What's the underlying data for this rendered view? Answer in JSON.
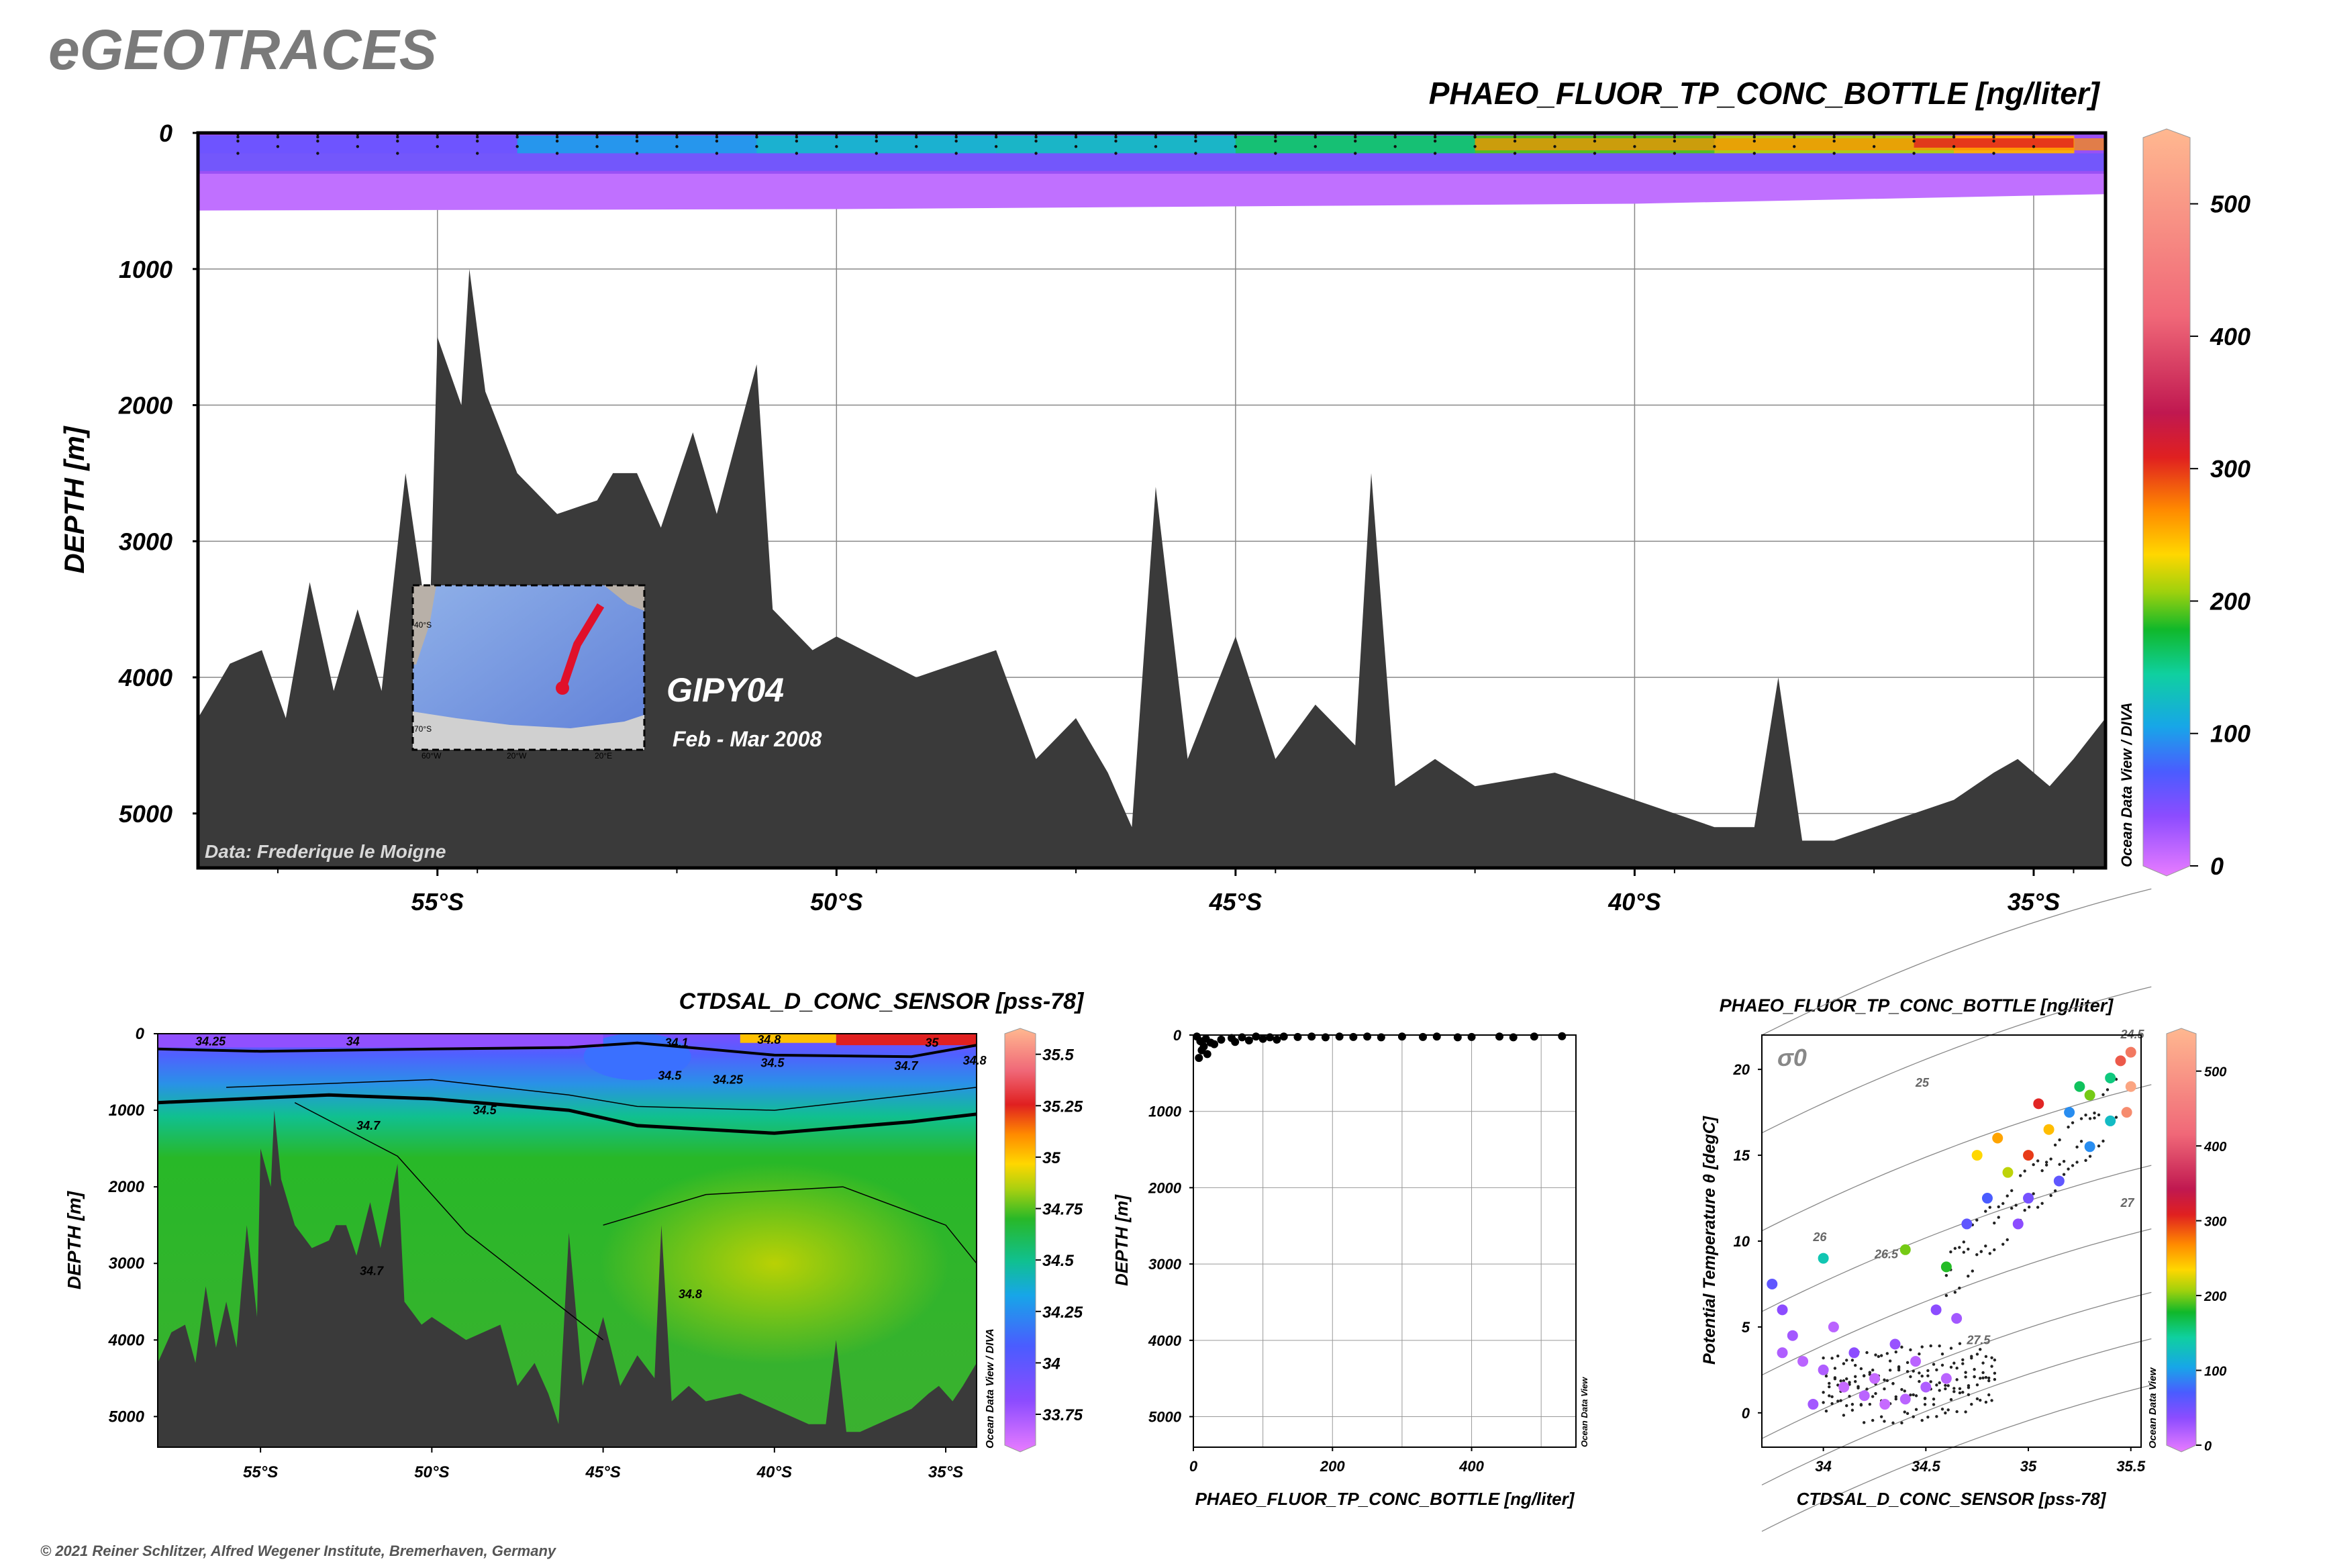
{
  "logo_text": "eGEOTRACES",
  "copyright": "© 2021 Reiner Schlitzer, Alfred Wegener Institute, Bremerhaven, Germany",
  "colors": {
    "seafloor": "#3a3a3a",
    "frame": "#000000",
    "grid": "#888888",
    "track": "#e0102a"
  },
  "chart_data": [
    {
      "id": "main_section",
      "type": "heatmap",
      "title": "PHAEO_FLUOR_TP_CONC_BOTTLE [ng/liter]",
      "ylabel": "DEPTH [m]",
      "ylim": [
        0,
        5400
      ],
      "yticks": [
        0,
        1000,
        2000,
        3000,
        4000,
        5000
      ],
      "xlim": [
        -58,
        -34.1
      ],
      "xticks": [
        {
          "value": -55,
          "label": "55°S"
        },
        {
          "value": -50,
          "label": "50°S"
        },
        {
          "value": -45,
          "label": "45°S"
        },
        {
          "value": -40,
          "label": "40°S"
        },
        {
          "value": -35,
          "label": "35°S"
        }
      ],
      "colorbar": {
        "range": [
          0,
          550
        ],
        "ticks": [
          0,
          100,
          200,
          300,
          400,
          500
        ],
        "label": "Ocean Data View / DIVA"
      },
      "data_source": "Data: Frederique le Moigne",
      "cruise": "GIPY04",
      "period": "Feb - Mar 2008",
      "inset_map_labels": [
        "40°S",
        "70°S",
        "60°W",
        "20°W",
        "20°E"
      ],
      "bottom_depth": [
        [
          -58,
          4300
        ],
        [
          -57.6,
          3900
        ],
        [
          -57.2,
          3800
        ],
        [
          -56.9,
          4300
        ],
        [
          -56.6,
          3300
        ],
        [
          -56.3,
          4100
        ],
        [
          -56,
          3500
        ],
        [
          -55.7,
          4100
        ],
        [
          -55.4,
          2500
        ],
        [
          -55.1,
          3700
        ],
        [
          -55,
          1500
        ],
        [
          -54.7,
          2000
        ],
        [
          -54.6,
          1000
        ],
        [
          -54.4,
          1900
        ],
        [
          -54,
          2500
        ],
        [
          -53.5,
          2800
        ],
        [
          -53,
          2700
        ],
        [
          -52.8,
          2500
        ],
        [
          -52.5,
          2500
        ],
        [
          -52.2,
          2900
        ],
        [
          -51.8,
          2200
        ],
        [
          -51.5,
          2800
        ],
        [
          -51,
          1700
        ],
        [
          -50.8,
          3500
        ],
        [
          -50.3,
          3800
        ],
        [
          -50,
          3700
        ],
        [
          -49,
          4000
        ],
        [
          -48,
          3800
        ],
        [
          -47.5,
          4600
        ],
        [
          -47,
          4300
        ],
        [
          -46.6,
          4700
        ],
        [
          -46.3,
          5100
        ],
        [
          -46,
          2600
        ],
        [
          -45.6,
          4600
        ],
        [
          -45,
          3700
        ],
        [
          -44.5,
          4600
        ],
        [
          -44,
          4200
        ],
        [
          -43.5,
          4500
        ],
        [
          -43.3,
          2500
        ],
        [
          -43,
          4800
        ],
        [
          -42.5,
          4600
        ],
        [
          -42,
          4800
        ],
        [
          -41,
          4700
        ],
        [
          -40,
          4900
        ],
        [
          -39.5,
          5000
        ],
        [
          -39,
          5100
        ],
        [
          -38.5,
          5100
        ],
        [
          -38.2,
          4000
        ],
        [
          -37.9,
          5200
        ],
        [
          -37.5,
          5200
        ],
        [
          -37,
          5100
        ],
        [
          -36.5,
          5000
        ],
        [
          -36,
          4900
        ],
        [
          -35.5,
          4700
        ],
        [
          -35.2,
          4600
        ],
        [
          -34.8,
          4800
        ],
        [
          -34.5,
          4600
        ],
        [
          -34.1,
          4300
        ],
        [
          -34.1,
          2000
        ]
      ],
      "near_surface_field_ng_per_liter": [
        {
          "lat": -58,
          "value": 40
        },
        {
          "lat": -54,
          "value": 70
        },
        {
          "lat": -51,
          "value": 120
        },
        {
          "lat": -48,
          "value": 110
        },
        {
          "lat": -45,
          "value": 130
        },
        {
          "lat": -42,
          "value": 180
        },
        {
          "lat": -39,
          "value": 200
        },
        {
          "lat": -36,
          "value": 230
        },
        {
          "lat": -34.5,
          "value": 280
        }
      ],
      "deep_field_value_ng_per_liter": 15,
      "field_max_depth_m": 550
    },
    {
      "id": "salinity_section",
      "type": "heatmap",
      "title": "CTDSAL_D_CONC_SENSOR [pss-78]",
      "ylabel": "DEPTH [m]",
      "ylim": [
        0,
        5400
      ],
      "yticks": [
        0,
        1000,
        2000,
        3000,
        4000,
        5000
      ],
      "xlim": [
        -58,
        -34.1
      ],
      "xticks": [
        {
          "value": -55,
          "label": "55°S"
        },
        {
          "value": -50,
          "label": "50°S"
        },
        {
          "value": -45,
          "label": "45°S"
        },
        {
          "value": -40,
          "label": "40°S"
        },
        {
          "value": -35,
          "label": "35°S"
        }
      ],
      "colorbar": {
        "range": [
          33.6,
          35.6
        ],
        "ticks": [
          33.75,
          34,
          34.25,
          34.5,
          34.75,
          35,
          35.25,
          35.5
        ],
        "tick_labels": [
          "33.75",
          "34",
          "34.25",
          "34.5",
          "34.75",
          "35",
          "35.25",
          "35.5"
        ],
        "label": "Ocean Data View / DIVA"
      },
      "contour_labels": [
        {
          "text": "34.25",
          "lat": -56.9,
          "depth": 100
        },
        {
          "text": "34",
          "lat": -52.5,
          "depth": 100
        },
        {
          "text": "34.1",
          "lat": -43.2,
          "depth": 120
        },
        {
          "text": "34.8",
          "lat": -40.5,
          "depth": 80
        },
        {
          "text": "35",
          "lat": -35.6,
          "depth": 120
        },
        {
          "text": "34.5",
          "lat": -43.4,
          "depth": 550
        },
        {
          "text": "34.25",
          "lat": -41.8,
          "depth": 600
        },
        {
          "text": "34.5",
          "lat": -40.4,
          "depth": 380
        },
        {
          "text": "34.7",
          "lat": -36.5,
          "depth": 420
        },
        {
          "text": "34.8",
          "lat": -34.5,
          "depth": 350
        },
        {
          "text": "34.5",
          "lat": -48.8,
          "depth": 1000
        },
        {
          "text": "34.7",
          "lat": -52.2,
          "depth": 1200
        },
        {
          "text": "34.7",
          "lat": -52.1,
          "depth": 3100
        },
        {
          "text": "34.8",
          "lat": -42.8,
          "depth": 3400
        }
      ]
    },
    {
      "id": "scatter_depth",
      "type": "scatter",
      "xlabel": "PHAEO_FLUOR_TP_CONC_BOTTLE [ng/liter]",
      "ylabel": "DEPTH [m]",
      "xlim": [
        0,
        550
      ],
      "xticks": [
        0,
        200,
        400
      ],
      "ylim": [
        0,
        5400
      ],
      "yticks": [
        0,
        1000,
        2000,
        3000,
        4000,
        5000
      ],
      "side_label": "Ocean Data View",
      "points": [
        [
          5,
          20
        ],
        [
          10,
          80
        ],
        [
          15,
          150
        ],
        [
          20,
          250
        ],
        [
          8,
          300
        ],
        [
          25,
          100
        ],
        [
          40,
          60
        ],
        [
          55,
          40
        ],
        [
          70,
          30
        ],
        [
          90,
          20
        ],
        [
          110,
          30
        ],
        [
          130,
          20
        ],
        [
          150,
          25
        ],
        [
          170,
          20
        ],
        [
          190,
          30
        ],
        [
          210,
          20
        ],
        [
          230,
          25
        ],
        [
          250,
          20
        ],
        [
          270,
          30
        ],
        [
          300,
          20
        ],
        [
          330,
          25
        ],
        [
          350,
          20
        ],
        [
          380,
          30
        ],
        [
          400,
          25
        ],
        [
          440,
          20
        ],
        [
          460,
          30
        ],
        [
          490,
          20
        ],
        [
          530,
          15
        ],
        [
          12,
          200
        ],
        [
          30,
          120
        ],
        [
          18,
          50
        ],
        [
          60,
          90
        ],
        [
          80,
          70
        ],
        [
          100,
          50
        ],
        [
          120,
          60
        ]
      ]
    },
    {
      "id": "ts_diagram",
      "type": "scatter",
      "title": "PHAEO_FLUOR_TP_CONC_BOTTLE [ng/liter]",
      "xlabel": "CTDSAL_D_CONC_SENSOR [pss-78]",
      "ylabel": "Potential Temperature θ [degC]",
      "xlim": [
        33.7,
        35.55
      ],
      "xticks": [
        34,
        34.5,
        35,
        35.5
      ],
      "ylim": [
        -2,
        22
      ],
      "yticks": [
        0,
        5,
        10,
        15,
        20
      ],
      "density_label": "σ0",
      "isopycnal_labels": [
        "24.5",
        "25",
        "26",
        "26.5",
        "27",
        "27.5"
      ],
      "colorbar": {
        "range": [
          0,
          550
        ],
        "ticks": [
          0,
          100,
          200,
          300,
          400,
          500
        ],
        "label": "Ocean Data View"
      },
      "points": [
        [
          33.75,
          7.5,
          60
        ],
        [
          33.8,
          6.0,
          40
        ],
        [
          33.85,
          4.5,
          30
        ],
        [
          33.9,
          3.0,
          20
        ],
        [
          34.0,
          2.5,
          25
        ],
        [
          34.1,
          1.5,
          15
        ],
        [
          34.2,
          1.0,
          20
        ],
        [
          34.3,
          0.5,
          15
        ],
        [
          34.4,
          0.8,
          20
        ],
        [
          34.5,
          1.5,
          25
        ],
        [
          34.6,
          2.0,
          20
        ],
        [
          33.95,
          0.5,
          30
        ],
        [
          34.15,
          3.5,
          40
        ],
        [
          34.35,
          4.0,
          35
        ],
        [
          34.55,
          6.0,
          40
        ],
        [
          34.6,
          8.5,
          180
        ],
        [
          34.7,
          11.0,
          60
        ],
        [
          34.8,
          12.5,
          70
        ],
        [
          34.9,
          14.0,
          220
        ],
        [
          35.0,
          15.0,
          300
        ],
        [
          35.1,
          16.5,
          250
        ],
        [
          35.2,
          17.5,
          90
        ],
        [
          35.3,
          18.5,
          200
        ],
        [
          35.4,
          19.5,
          150
        ],
        [
          35.45,
          20.5,
          400
        ],
        [
          35.5,
          21.0,
          450
        ],
        [
          35.0,
          12.5,
          50
        ],
        [
          34.95,
          11.0,
          40
        ],
        [
          35.15,
          13.5,
          60
        ],
        [
          35.3,
          15.5,
          90
        ],
        [
          35.4,
          17.0,
          120
        ],
        [
          34.85,
          16.0,
          260
        ],
        [
          34.75,
          15.0,
          240
        ],
        [
          35.05,
          18.0,
          320
        ],
        [
          35.25,
          19.0,
          160
        ],
        [
          33.8,
          3.5,
          25
        ],
        [
          34.05,
          5.0,
          20
        ],
        [
          34.25,
          2.0,
          15
        ],
        [
          34.45,
          3.0,
          20
        ],
        [
          34.65,
          5.5,
          30
        ],
        [
          35.5,
          19.0,
          520
        ],
        [
          35.48,
          17.5,
          480
        ],
        [
          34.0,
          9.0,
          130
        ],
        [
          34.4,
          9.5,
          200
        ]
      ]
    }
  ]
}
